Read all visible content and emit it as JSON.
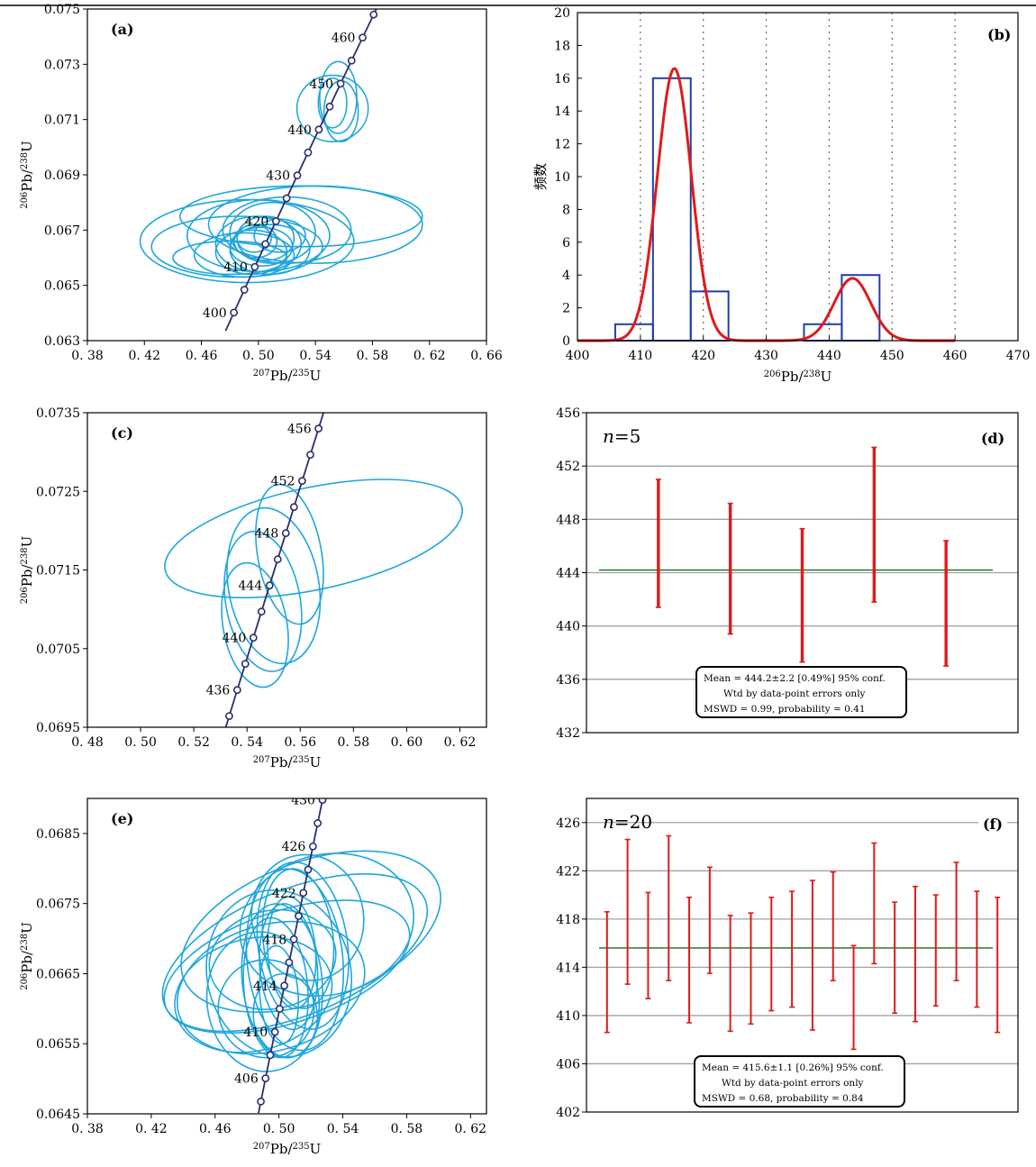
{
  "chart_data": [
    {
      "id": "a",
      "panel_label": "(a)",
      "type": "scatter",
      "xlim": [
        0.38,
        0.66
      ],
      "ylim": [
        0.063,
        0.075
      ],
      "xticks": [
        "0.38",
        "0.42",
        "0.46",
        "0.50",
        "0.54",
        "0.58",
        "0.62",
        "0.66"
      ],
      "yticks": [
        "0.063",
        "0.065",
        "0.067",
        "0.069",
        "0.071",
        "0.073",
        "0.075"
      ],
      "xlabel": "207Pb/235U",
      "ylabel": "206Pb/238U",
      "concordia": {
        "age_range": [
          396,
          472
        ],
        "marker_step": 5,
        "labels": [
          {
            "age": 400,
            "text": "400"
          },
          {
            "age": 410,
            "text": "410"
          },
          {
            "age": 420,
            "text": "420"
          },
          {
            "age": 430,
            "text": "430"
          },
          {
            "age": 440,
            "text": "440"
          },
          {
            "age": 450,
            "text": "450"
          },
          {
            "age": 460,
            "text": "460"
          }
        ]
      },
      "ellipses": [
        {
          "x": 0.552,
          "y": 0.0714,
          "rx": 0.025,
          "ry": 0.0012,
          "angle": 0
        },
        {
          "x": 0.556,
          "y": 0.0718,
          "rx": 0.013,
          "ry": 0.0013,
          "angle": 0
        },
        {
          "x": 0.552,
          "y": 0.0716,
          "rx": 0.01,
          "ry": 0.0009,
          "angle": 0
        },
        {
          "x": 0.558,
          "y": 0.0713,
          "rx": 0.012,
          "ry": 0.0011,
          "angle": 0
        },
        {
          "x": 0.492,
          "y": 0.0666,
          "rx": 0.075,
          "ry": 0.0015,
          "angle": 0
        },
        {
          "x": 0.54,
          "y": 0.0672,
          "rx": 0.075,
          "ry": 0.0014,
          "angle": 0
        },
        {
          "x": 0.5,
          "y": 0.0668,
          "rx": 0.05,
          "ry": 0.0013,
          "angle": 0
        },
        {
          "x": 0.485,
          "y": 0.0664,
          "rx": 0.06,
          "ry": 0.0011,
          "angle": 0
        },
        {
          "x": 0.53,
          "y": 0.0675,
          "rx": 0.085,
          "ry": 0.0011,
          "angle": 0
        },
        {
          "x": 0.5,
          "y": 0.0665,
          "rx": 0.03,
          "ry": 0.001,
          "angle": 0
        },
        {
          "x": 0.505,
          "y": 0.0667,
          "rx": 0.02,
          "ry": 0.0008,
          "angle": 0
        },
        {
          "x": 0.495,
          "y": 0.0662,
          "rx": 0.025,
          "ry": 0.0008,
          "angle": 0
        },
        {
          "x": 0.51,
          "y": 0.0669,
          "rx": 0.03,
          "ry": 0.0011,
          "angle": 0
        },
        {
          "x": 0.498,
          "y": 0.0666,
          "rx": 0.015,
          "ry": 0.0006,
          "angle": 0
        },
        {
          "x": 0.49,
          "y": 0.0661,
          "rx": 0.035,
          "ry": 0.0008,
          "angle": 0
        },
        {
          "x": 0.52,
          "y": 0.067,
          "rx": 0.045,
          "ry": 0.0012,
          "angle": 0
        },
        {
          "x": 0.502,
          "y": 0.0664,
          "rx": 0.022,
          "ry": 0.0007,
          "angle": 0
        },
        {
          "x": 0.515,
          "y": 0.0668,
          "rx": 0.018,
          "ry": 0.0006,
          "angle": 0
        },
        {
          "x": 0.48,
          "y": 0.066,
          "rx": 0.04,
          "ry": 0.0006,
          "angle": 0
        },
        {
          "x": 0.508,
          "y": 0.0663,
          "rx": 0.028,
          "ry": 0.0009,
          "angle": 0
        },
        {
          "x": 0.497,
          "y": 0.0667,
          "rx": 0.012,
          "ry": 0.0005,
          "angle": 0
        }
      ]
    },
    {
      "id": "b",
      "panel_label": "(b)",
      "type": "bar",
      "xlim": [
        400,
        470
      ],
      "ylim": [
        0,
        20
      ],
      "xticks": [
        "400",
        "410",
        "420",
        "430",
        "440",
        "450",
        "460",
        "470"
      ],
      "yticks": [
        "0",
        "2",
        "4",
        "6",
        "8",
        "10",
        "12",
        "14",
        "16",
        "18",
        "20"
      ],
      "xlabel": "206Pb/238U",
      "ylabel": "频数",
      "bins": [
        {
          "x0": 406,
          "x1": 412,
          "count": 1
        },
        {
          "x0": 412,
          "x1": 418,
          "count": 16
        },
        {
          "x0": 418,
          "x1": 424,
          "count": 3
        },
        {
          "x0": 436,
          "x1": 442,
          "count": 1
        },
        {
          "x0": 442,
          "x1": 448,
          "count": 4
        }
      ],
      "vlines": [
        410,
        420,
        430,
        440,
        450,
        460
      ],
      "density_peaks": [
        {
          "center": 415.4,
          "height": 16.6,
          "sigma": 2.7
        },
        {
          "center": 443.7,
          "height": 3.8,
          "sigma": 2.9
        }
      ]
    },
    {
      "id": "c",
      "panel_label": "(c)",
      "type": "scatter",
      "xlim": [
        0.48,
        0.63
      ],
      "ylim": [
        0.0695,
        0.0735
      ],
      "xticks": [
        "0.48",
        "0.50",
        "0.52",
        "0.54",
        "0.56",
        "0.58",
        "0.60",
        "0.62"
      ],
      "yticks": [
        "0.0695",
        "0.0705",
        "0.0715",
        "0.0725",
        "0.0735"
      ],
      "xlabel": "207Pb/235U",
      "ylabel": "206Pb/238U",
      "concordia": {
        "age_range": [
          433,
          458
        ],
        "marker_step": 2,
        "labels": [
          {
            "age": 436,
            "text": "436"
          },
          {
            "age": 440,
            "text": "440"
          },
          {
            "age": 444,
            "text": "444"
          },
          {
            "age": 448,
            "text": "448"
          },
          {
            "age": 452,
            "text": "452"
          },
          {
            "age": 456,
            "text": "456"
          }
        ]
      },
      "ellipses": [
        {
          "x": 0.565,
          "y": 0.0719,
          "rx": 0.057,
          "ry": 0.00065,
          "angle": 12
        },
        {
          "x": 0.556,
          "y": 0.0717,
          "rx": 0.012,
          "ry": 0.0009,
          "angle": 10
        },
        {
          "x": 0.55,
          "y": 0.0713,
          "rx": 0.017,
          "ry": 0.001,
          "angle": 10
        },
        {
          "x": 0.546,
          "y": 0.0711,
          "rx": 0.014,
          "ry": 0.0009,
          "angle": 10
        },
        {
          "x": 0.543,
          "y": 0.0708,
          "rx": 0.012,
          "ry": 0.0008,
          "angle": 10
        }
      ]
    },
    {
      "id": "d",
      "panel_label": "(d)",
      "type": "scatter",
      "n_label": "n=5",
      "ylim": [
        432,
        456
      ],
      "yticks": [
        "432",
        "436",
        "440",
        "444",
        "448",
        "452",
        "456"
      ],
      "mean": 444.2,
      "points": [
        {
          "age": 446.2,
          "err": 4.8
        },
        {
          "age": 444.3,
          "err": 4.9
        },
        {
          "age": 442.3,
          "err": 5.0
        },
        {
          "age": 447.6,
          "err": 5.8
        },
        {
          "age": 441.7,
          "err": 4.7
        }
      ],
      "box_lines": [
        "Mean = 444.2±2.2 [0.49%] 95% conf.",
        "Wtd by data-point errors only",
        "MSWD = 0.99, probability = 0.41"
      ]
    },
    {
      "id": "e",
      "panel_label": "(e)",
      "type": "scatter",
      "xlim": [
        0.38,
        0.63
      ],
      "ylim": [
        0.0645,
        0.069
      ],
      "xticks": [
        "0.38",
        "0.42",
        "0.46",
        "0.50",
        "0.54",
        "0.58",
        "0.62"
      ],
      "yticks": [
        "0.0645",
        "0.0655",
        "0.0665",
        "0.0675",
        "0.0685"
      ],
      "xlabel": "207Pb/235U",
      "ylabel": "206Pb/238U",
      "concordia": {
        "age_range": [
          403,
          431
        ],
        "marker_step": 2,
        "labels": [
          {
            "age": 406,
            "text": "406"
          },
          {
            "age": 410,
            "text": "410"
          },
          {
            "age": 414,
            "text": "414"
          },
          {
            "age": 418,
            "text": "418"
          },
          {
            "age": 422,
            "text": "422"
          },
          {
            "age": 426,
            "text": "426"
          },
          {
            "age": 430,
            "text": "430"
          }
        ]
      },
      "ellipses": [
        {
          "x": 0.51,
          "y": 0.0668,
          "rx": 0.088,
          "ry": 0.0009,
          "angle": 22
        },
        {
          "x": 0.505,
          "y": 0.0666,
          "rx": 0.08,
          "ry": 0.0008,
          "angle": 18
        },
        {
          "x": 0.52,
          "y": 0.0671,
          "rx": 0.085,
          "ry": 0.001,
          "angle": 20
        },
        {
          "x": 0.495,
          "y": 0.0663,
          "rx": 0.06,
          "ry": 0.0009,
          "angle": 16
        },
        {
          "x": 0.5,
          "y": 0.0665,
          "rx": 0.045,
          "ry": 0.0012,
          "angle": 14
        },
        {
          "x": 0.49,
          "y": 0.0661,
          "rx": 0.035,
          "ry": 0.001,
          "angle": 8
        },
        {
          "x": 0.51,
          "y": 0.0667,
          "rx": 0.03,
          "ry": 0.0013,
          "angle": 6
        },
        {
          "x": 0.502,
          "y": 0.0664,
          "rx": 0.025,
          "ry": 0.0011,
          "angle": 6
        },
        {
          "x": 0.515,
          "y": 0.0669,
          "rx": 0.028,
          "ry": 0.0012,
          "angle": 8
        },
        {
          "x": 0.498,
          "y": 0.0663,
          "rx": 0.02,
          "ry": 0.001,
          "angle": 5
        },
        {
          "x": 0.506,
          "y": 0.0666,
          "rx": 0.018,
          "ry": 0.0009,
          "angle": 5
        },
        {
          "x": 0.512,
          "y": 0.067,
          "rx": 0.022,
          "ry": 0.001,
          "angle": 6
        },
        {
          "x": 0.492,
          "y": 0.066,
          "rx": 0.03,
          "ry": 0.0007,
          "angle": 10
        },
        {
          "x": 0.53,
          "y": 0.0672,
          "rx": 0.055,
          "ry": 0.001,
          "angle": 14
        },
        {
          "x": 0.484,
          "y": 0.0662,
          "rx": 0.05,
          "ry": 0.0008,
          "angle": 14
        },
        {
          "x": 0.508,
          "y": 0.0668,
          "rx": 0.015,
          "ry": 0.0008,
          "angle": 4
        },
        {
          "x": 0.5,
          "y": 0.0662,
          "rx": 0.012,
          "ry": 0.0007,
          "angle": 4
        },
        {
          "x": 0.518,
          "y": 0.0673,
          "rx": 0.035,
          "ry": 0.0009,
          "angle": 10
        },
        {
          "x": 0.496,
          "y": 0.0667,
          "rx": 0.04,
          "ry": 0.0007,
          "angle": 12
        },
        {
          "x": 0.504,
          "y": 0.0659,
          "rx": 0.02,
          "ry": 0.0006,
          "angle": 5
        }
      ]
    },
    {
      "id": "f",
      "panel_label": "(f)",
      "type": "scatter",
      "n_label": "n=20",
      "ylim": [
        402,
        428
      ],
      "yticks": [
        "402",
        "406",
        "410",
        "414",
        "418",
        "422",
        "426"
      ],
      "mean": 415.6,
      "points": [
        {
          "age": 413.6,
          "err": 5.0
        },
        {
          "age": 418.6,
          "err": 6.0
        },
        {
          "age": 415.8,
          "err": 4.4
        },
        {
          "age": 418.9,
          "err": 6.0
        },
        {
          "age": 414.6,
          "err": 5.2
        },
        {
          "age": 417.9,
          "err": 4.4
        },
        {
          "age": 413.5,
          "err": 4.8
        },
        {
          "age": 413.9,
          "err": 4.6
        },
        {
          "age": 415.1,
          "err": 4.7
        },
        {
          "age": 415.5,
          "err": 4.8
        },
        {
          "age": 415.0,
          "err": 6.2
        },
        {
          "age": 417.4,
          "err": 4.5
        },
        {
          "age": 411.5,
          "err": 4.3
        },
        {
          "age": 419.3,
          "err": 5.0
        },
        {
          "age": 414.8,
          "err": 4.6
        },
        {
          "age": 415.1,
          "err": 5.6
        },
        {
          "age": 415.4,
          "err": 4.6
        },
        {
          "age": 417.8,
          "err": 4.9
        },
        {
          "age": 415.5,
          "err": 4.8
        },
        {
          "age": 414.2,
          "err": 5.6
        }
      ],
      "box_lines": [
        "Mean = 415.6±1.1 [0.26%] 95% conf.",
        "Wtd by data-point errors only",
        "MSWD = 0.68, probability = 0.84"
      ]
    }
  ],
  "colors": {
    "ellipse": "#1fa6dc",
    "concordia": "#2b2f6e",
    "marker_fill": "#ffffff",
    "histogram": "#1f3fa8",
    "density": "#e01a1a",
    "error_bar": "#e01a1a",
    "mean_line": "#1a6b1a",
    "grid": "#a0a0a0"
  }
}
